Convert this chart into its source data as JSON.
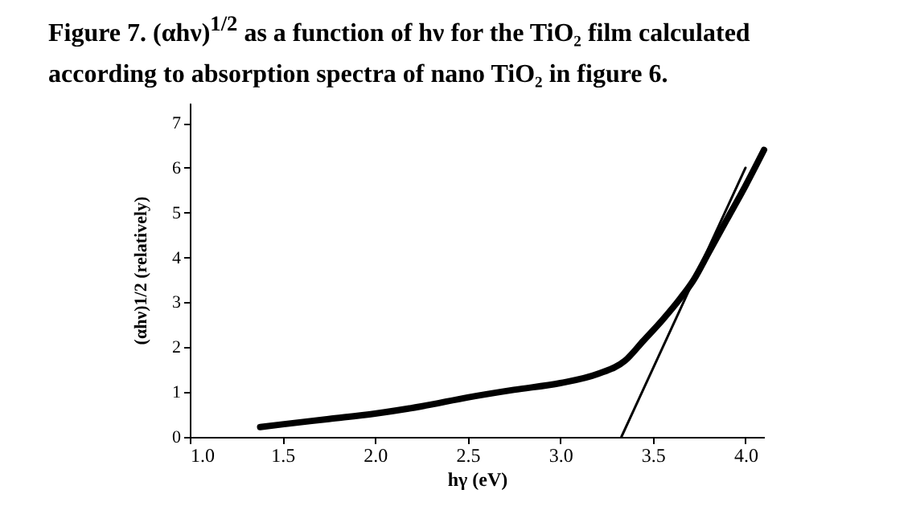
{
  "chart_data": {
    "type": "line",
    "title": "Figure 7. (αhν)$^{1/2}$ as a function of  hν for the TiO₂ film calculated according to absorption spectra of nano TiO₂ in figure 6.",
    "xlabel": "hγ (eV)",
    "ylabel": "(αhν)1/2 (relatively)",
    "xlim": [
      1.0,
      4.1
    ],
    "xticks": [
      {
        "value": 1.0,
        "label": "1.0"
      },
      1.5,
      {
        "value": 2.0,
        "label": "2.0"
      },
      2.5,
      {
        "value": 3.0,
        "label": "3.0"
      },
      3.5,
      {
        "value": 4.0,
        "label": "4.0"
      }
    ],
    "ylim": [
      0,
      7.45
    ],
    "yticks": [
      0,
      1,
      2,
      3,
      4,
      5,
      6,
      7
    ],
    "grid": false,
    "marker": "none",
    "line_style": "solid",
    "series": [
      {
        "color": "#000000",
        "x": [
          1.38,
          1.5,
          1.75,
          2.0,
          2.25,
          2.5,
          2.75,
          3.0,
          3.2,
          3.35,
          3.45,
          3.55,
          3.65,
          3.72,
          3.8,
          3.9,
          4.0,
          4.1
        ],
        "values": [
          0.22,
          0.28,
          0.4,
          0.52,
          0.68,
          0.88,
          1.05,
          1.2,
          1.4,
          1.7,
          2.15,
          2.6,
          3.1,
          3.5,
          4.1,
          4.85,
          5.6,
          6.4
        ]
      },
      {
        "color": "#000000",
        "x": [
          3.33,
          4.0
        ],
        "values": [
          0,
          6.0
        ]
      }
    ]
  }
}
